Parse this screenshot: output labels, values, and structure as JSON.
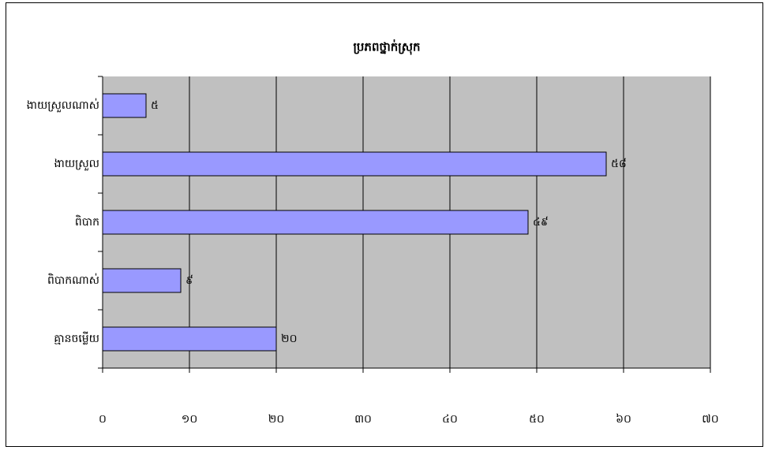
{
  "chart_data": {
    "type": "bar",
    "orientation": "horizontal",
    "title": "ប្រភពថ្នាក់ស្រុក",
    "categories": [
      "ងាយស្រួលណាស់",
      "ងាយស្រួល",
      "ពិបាក",
      "ពិបាកណាស់",
      "គ្មានចម្លើយ"
    ],
    "values": [
      5,
      58,
      49,
      9,
      20
    ],
    "value_labels": [
      "៥",
      "៥៨",
      "៤៩",
      "៩",
      "២០"
    ],
    "color": "#9999ff",
    "xlim": [
      0,
      70
    ],
    "xticks": [
      {
        "value": 0,
        "label": "០"
      },
      {
        "value": 10,
        "label": "១០"
      },
      {
        "value": 20,
        "label": "២០"
      },
      {
        "value": 30,
        "label": "៣០"
      },
      {
        "value": 40,
        "label": "៤០"
      },
      {
        "value": 50,
        "label": "៥០"
      },
      {
        "value": 60,
        "label": "៦០"
      },
      {
        "value": 70,
        "label": "៧០"
      }
    ],
    "grid": true
  }
}
